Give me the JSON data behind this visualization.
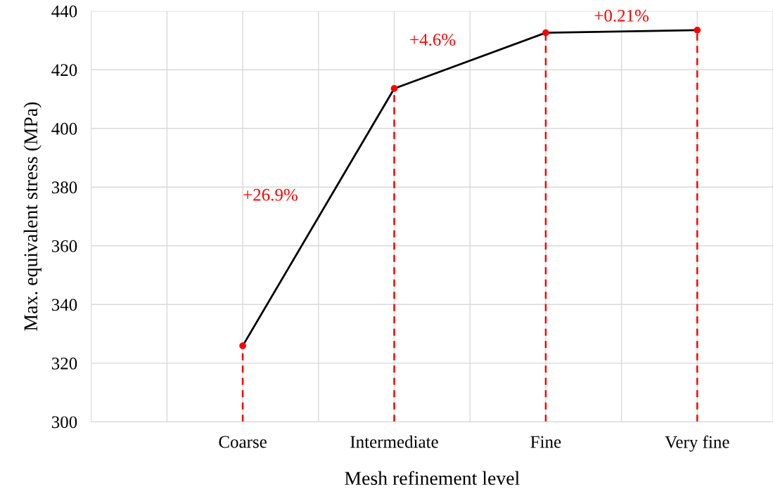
{
  "chart_data": {
    "type": "line",
    "xlabel": "Mesh refinement level",
    "ylabel": "Max. equivalent stress (MPa)",
    "categories": [
      "Coarse",
      "Intermediate",
      "Fine",
      "Very fine"
    ],
    "series": [
      {
        "color": "#000000",
        "marker": "none",
        "values": [
          325.9,
          413.6,
          432.6,
          433.5
        ]
      },
      {
        "type": "lollipop",
        "color": "#ff0000",
        "line_style": "dashed",
        "marker": "circle",
        "values": [
          325.9,
          413.6,
          432.6,
          433.5
        ]
      }
    ],
    "ylim": [
      300,
      440
    ],
    "yticks": [
      300,
      320,
      340,
      360,
      380,
      400,
      420,
      440
    ],
    "grid": true,
    "annotations": [
      "+26.9%",
      "+4.6%",
      "+0.21%"
    ]
  }
}
